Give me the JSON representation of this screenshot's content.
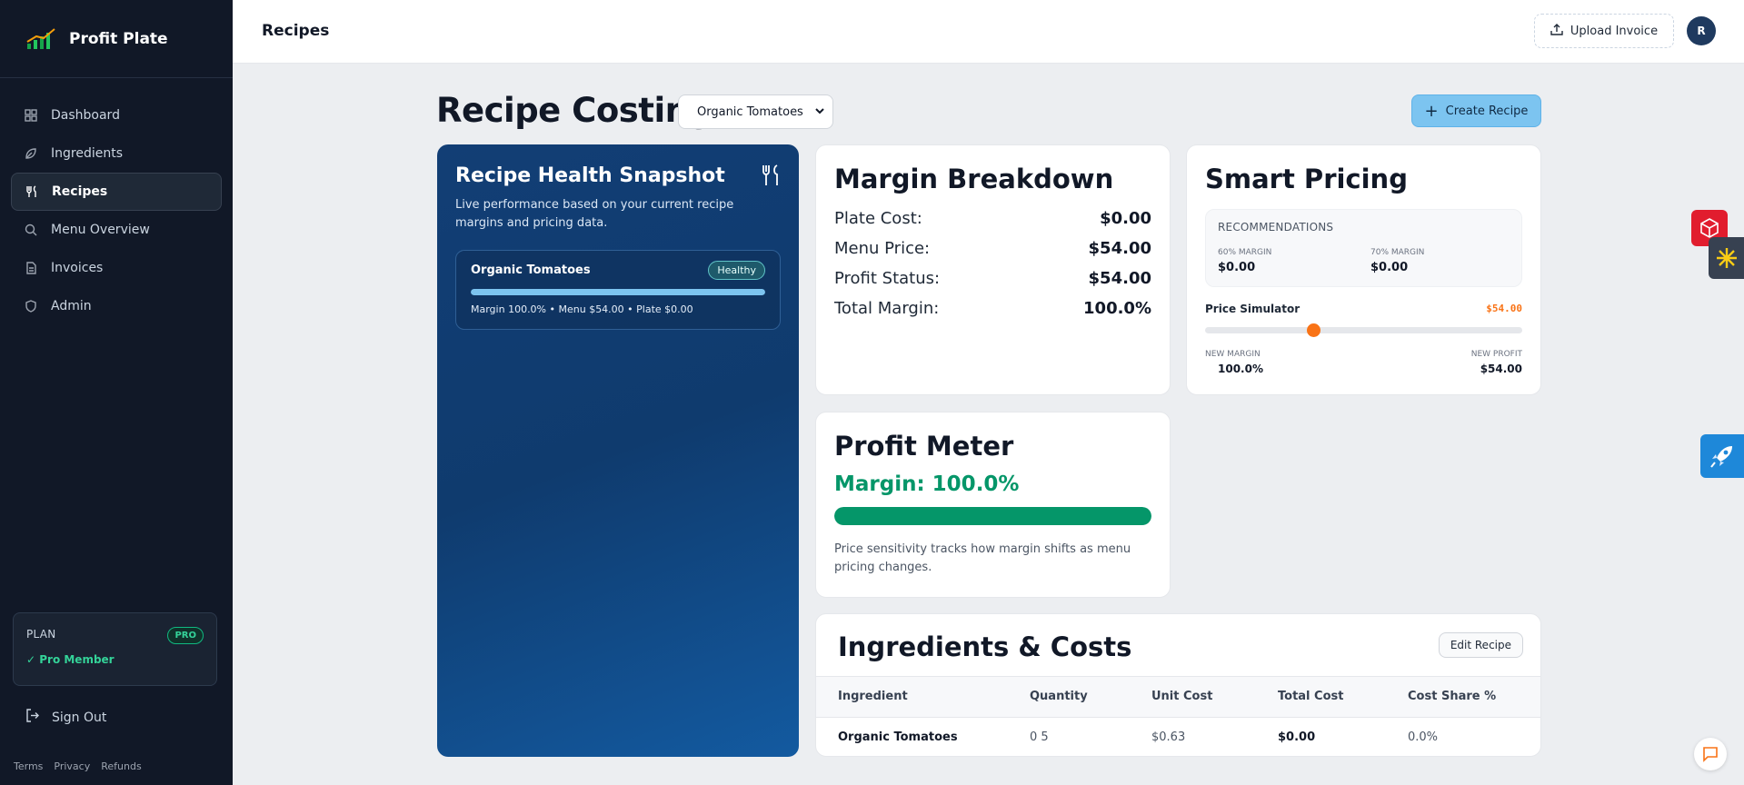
{
  "brand": {
    "name": "Profit Plate",
    "logo_icon": "bar-chart-trend-icon"
  },
  "sidebar": {
    "items": [
      {
        "label": "Dashboard",
        "icon": "grid-icon"
      },
      {
        "label": "Ingredients",
        "icon": "leaf-icon"
      },
      {
        "label": "Recipes",
        "icon": "fork-knife-icon",
        "active": true
      },
      {
        "label": "Menu Overview",
        "icon": "search-icon"
      },
      {
        "label": "Invoices",
        "icon": "document-icon"
      },
      {
        "label": "Admin",
        "icon": "shield-icon"
      }
    ],
    "plan": {
      "label": "PLAN",
      "badge": "PRO",
      "member": "✓ Pro Member"
    },
    "sign_out": "Sign Out",
    "footer_links": [
      "Terms",
      "Privacy",
      "Refunds"
    ]
  },
  "topbar": {
    "title": "Recipes",
    "upload_label": "Upload Invoice",
    "avatar_initial": "R"
  },
  "header": {
    "title": "Recipe Costing",
    "selected_recipe": "Organic Tomatoes",
    "create_label": "Create Recipe"
  },
  "health": {
    "title": "Recipe Health Snapshot",
    "description": "Live performance based on your current recipe margins and pricing data.",
    "item": {
      "name": "Organic Tomatoes",
      "status": "Healthy",
      "progress": 1.0,
      "meta": "Margin 100.0% • Menu $54.00 • Plate $0.00"
    }
  },
  "margin": {
    "title": "Margin Breakdown",
    "rows": [
      {
        "label": "Plate Cost:",
        "value": "$0.00"
      },
      {
        "label": "Menu Price:",
        "value": "$54.00"
      },
      {
        "label": "Profit Status:",
        "value": "$54.00"
      },
      {
        "label": "Total Margin:",
        "value": "100.0%"
      }
    ]
  },
  "pricing": {
    "title": "Smart Pricing",
    "recommendations_label": "RECOMMENDATIONS",
    "rec1": {
      "label": "60% MARGIN",
      "value": "$0.00"
    },
    "rec2": {
      "label": "70% MARGIN",
      "value": "$0.00"
    },
    "simulator_label": "Price Simulator",
    "simulator_value": "$54.00",
    "slider_level": 0.34,
    "new_margin_label": "NEW MARGIN",
    "new_margin_value": "100.0%",
    "new_profit_label": "NEW PROFIT",
    "new_profit_value": "$54.00"
  },
  "meter": {
    "title": "Profit Meter",
    "margin_text": "Margin: 100.0%",
    "level": 1.0,
    "note": "Price sensitivity tracks how margin shifts as menu pricing changes."
  },
  "ingredients": {
    "title": "Ingredients & Costs",
    "edit_label": "Edit Recipe",
    "columns": [
      "Ingredient",
      "Quantity",
      "Unit Cost",
      "Total Cost",
      "Cost Share %"
    ],
    "rows": [
      [
        "Organic Tomatoes",
        "0 5",
        "$0.63",
        "$0.00",
        "0.0%"
      ]
    ]
  },
  "colors": {
    "sidebar_bg": "#111827",
    "accent_blue": "#7cc4f0",
    "success": "#059669",
    "warning": "#f97316"
  }
}
